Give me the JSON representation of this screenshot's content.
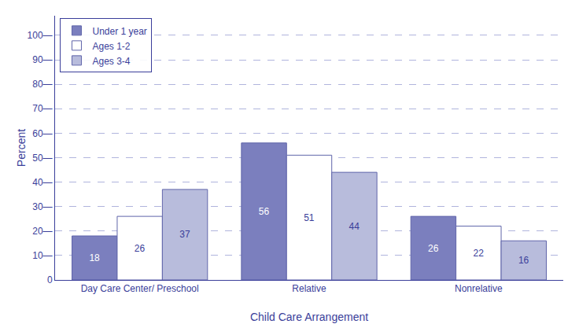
{
  "chart_data": {
    "type": "bar",
    "xlabel": "Child Care Arrangement",
    "ylabel": "Percent",
    "categories": [
      "Day Care Center/ Preschool",
      "Relative",
      "Nonrelative"
    ],
    "series": [
      {
        "name": "Under 1 year",
        "color": "#7B7FBE",
        "values": [
          18,
          56,
          26
        ]
      },
      {
        "name": "Ages 1-2",
        "color": "#FFFFFF",
        "values": [
          26,
          51,
          22
        ]
      },
      {
        "name": "Ages 3-4",
        "color": "#B8BCDC",
        "values": [
          37,
          44,
          16
        ]
      }
    ],
    "ylim": [
      0,
      108
    ],
    "yticks": [
      0,
      {
        "value": 10,
        "label": "10—"
      },
      {
        "value": 20,
        "label": "20—"
      },
      {
        "value": 30,
        "label": "30—"
      },
      {
        "value": 40,
        "label": "40—"
      },
      {
        "value": 50,
        "label": "50—"
      },
      {
        "value": 60,
        "label": "60—"
      },
      {
        "value": 70,
        "label": "70—"
      },
      {
        "value": 80,
        "label": "80—"
      },
      {
        "value": 90,
        "label": "90—"
      },
      {
        "value": 100,
        "label": "100—"
      }
    ],
    "grid": true,
    "legend": "upper left",
    "data_labels": true
  }
}
